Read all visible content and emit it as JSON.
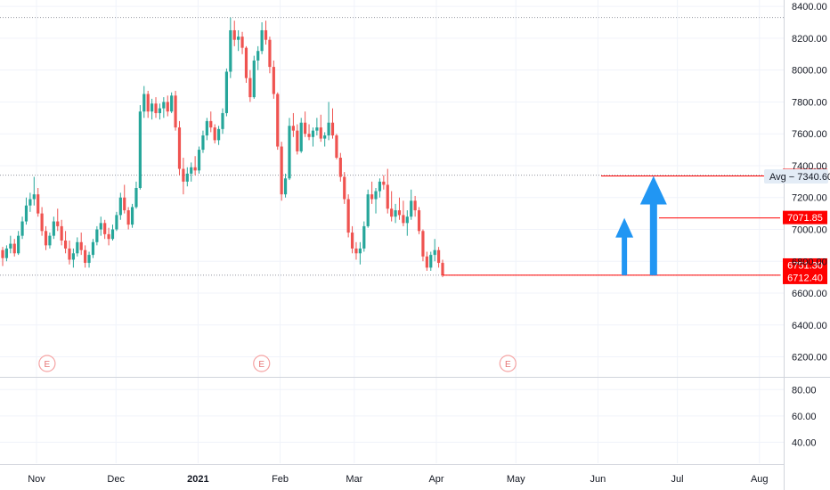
{
  "chart_data": {
    "type": "candlestick",
    "colors": {
      "up": "#26a69a",
      "down": "#ef5350",
      "level": "#ff0000",
      "arrow": "#2196f3",
      "grid": "#f0f3fa"
    },
    "price_axis": {
      "ylim": [
        6080,
        8440
      ],
      "ticks": [
        "8400.00",
        "8200.00",
        "8000.00",
        "7800.00",
        "7600.00",
        "7400.00",
        "7200.00",
        "7000.00",
        "6800.00",
        "6600.00",
        "6400.00",
        "6200.00"
      ]
    },
    "volume_axis": {
      "ylim": [
        24,
        89
      ],
      "ticks": [
        "80.00",
        "60.00",
        "40.00"
      ]
    },
    "months": [
      "Nov",
      "Dec",
      "2021",
      "Feb",
      "Mar",
      "Apr",
      "May",
      "Jun",
      "Jul",
      "Aug"
    ],
    "avg_label": "Avg − 7340.60",
    "avg_value": 7340.6,
    "levels": [
      {
        "value": 7335.45,
        "label": "7335.45"
      },
      {
        "value": 7071.85,
        "label": "7071.85"
      },
      {
        "value": 6751.3,
        "label": "6751.30"
      },
      {
        "value": 6712.4,
        "label": "6712.40"
      }
    ],
    "earnings_marker": "E",
    "earnings_dates": [
      "2020-11-05",
      "2021-01-25",
      "2021-04-28"
    ],
    "period_high": 8330,
    "arrows": [
      {
        "date": "2021-06-11",
        "from": 6712.4,
        "to": 7071.85
      },
      {
        "date": "2021-06-22",
        "from": 6712.4,
        "to": 7335.45
      }
    ],
    "candles": [
      [
        6870,
        6890,
        6770,
        6820
      ],
      [
        6820,
        6900,
        6800,
        6880
      ],
      [
        6880,
        6960,
        6850,
        6910
      ],
      [
        6910,
        6940,
        6830,
        6850
      ],
      [
        6850,
        6990,
        6840,
        6960
      ],
      [
        6960,
        7080,
        6940,
        7050
      ],
      [
        7050,
        7200,
        7030,
        7150
      ],
      [
        7150,
        7230,
        7110,
        7190
      ],
      [
        7190,
        7330,
        7150,
        7220
      ],
      [
        7220,
        7260,
        7080,
        7100
      ],
      [
        7100,
        7140,
        6960,
        6990
      ],
      [
        6990,
        7020,
        6870,
        6900
      ],
      [
        6900,
        6980,
        6880,
        6960
      ],
      [
        6960,
        7080,
        6940,
        7050
      ],
      [
        7050,
        7130,
        6990,
        7020
      ],
      [
        7020,
        7060,
        6900,
        6930
      ],
      [
        6930,
        6990,
        6850,
        6880
      ],
      [
        6880,
        6930,
        6780,
        6810
      ],
      [
        6810,
        6880,
        6760,
        6850
      ],
      [
        6850,
        6950,
        6830,
        6920
      ],
      [
        6920,
        6980,
        6840,
        6870
      ],
      [
        6870,
        6900,
        6760,
        6790
      ],
      [
        6790,
        6860,
        6760,
        6840
      ],
      [
        6840,
        6940,
        6820,
        6920
      ],
      [
        6920,
        7020,
        6900,
        7000
      ],
      [
        7000,
        7080,
        6960,
        7040
      ],
      [
        7040,
        7060,
        6940,
        6970
      ],
      [
        6970,
        7010,
        6900,
        6940
      ],
      [
        6940,
        7030,
        6930,
        7000
      ],
      [
        7000,
        7110,
        6990,
        7090
      ],
      [
        7090,
        7230,
        7060,
        7200
      ],
      [
        7200,
        7280,
        7100,
        7120
      ],
      [
        7120,
        7140,
        7000,
        7030
      ],
      [
        7030,
        7160,
        7010,
        7140
      ],
      [
        7140,
        7300,
        7130,
        7260
      ],
      [
        7260,
        7780,
        7250,
        7740
      ],
      [
        7740,
        7900,
        7700,
        7850
      ],
      [
        7850,
        7870,
        7700,
        7740
      ],
      [
        7740,
        7820,
        7690,
        7790
      ],
      [
        7790,
        7830,
        7700,
        7730
      ],
      [
        7730,
        7790,
        7690,
        7760
      ],
      [
        7760,
        7830,
        7700,
        7800
      ],
      [
        7800,
        7840,
        7710,
        7740
      ],
      [
        7740,
        7860,
        7730,
        7840
      ],
      [
        7840,
        7870,
        7620,
        7640
      ],
      [
        7640,
        7680,
        7340,
        7380
      ],
      [
        7380,
        7450,
        7220,
        7300
      ],
      [
        7300,
        7390,
        7270,
        7350
      ],
      [
        7350,
        7420,
        7300,
        7390
      ],
      [
        7390,
        7460,
        7340,
        7370
      ],
      [
        7370,
        7520,
        7350,
        7500
      ],
      [
        7500,
        7620,
        7480,
        7590
      ],
      [
        7590,
        7700,
        7560,
        7680
      ],
      [
        7680,
        7740,
        7610,
        7640
      ],
      [
        7640,
        7660,
        7540,
        7560
      ],
      [
        7560,
        7650,
        7530,
        7630
      ],
      [
        7630,
        7760,
        7600,
        7730
      ],
      [
        7730,
        8010,
        7710,
        7990
      ],
      [
        7990,
        8330,
        7950,
        8250
      ],
      [
        8250,
        8310,
        8150,
        8190
      ],
      [
        8190,
        8250,
        8120,
        8210
      ],
      [
        8210,
        8240,
        8100,
        8140
      ],
      [
        8140,
        8150,
        7920,
        7950
      ],
      [
        7950,
        8000,
        7800,
        7830
      ],
      [
        7830,
        8090,
        7820,
        8060
      ],
      [
        8060,
        8150,
        8000,
        8120
      ],
      [
        8120,
        8300,
        8100,
        8250
      ],
      [
        8250,
        8310,
        8160,
        8190
      ],
      [
        8190,
        8210,
        7980,
        8020
      ],
      [
        8020,
        8060,
        7820,
        7850
      ],
      [
        7850,
        7860,
        7500,
        7520
      ],
      [
        7520,
        7550,
        7180,
        7220
      ],
      [
        7220,
        7350,
        7200,
        7320
      ],
      [
        7320,
        7700,
        7310,
        7650
      ],
      [
        7650,
        7730,
        7580,
        7620
      ],
      [
        7620,
        7660,
        7470,
        7490
      ],
      [
        7490,
        7700,
        7480,
        7670
      ],
      [
        7670,
        7740,
        7580,
        7600
      ],
      [
        7600,
        7660,
        7560,
        7580
      ],
      [
        7580,
        7640,
        7520,
        7620
      ],
      [
        7620,
        7700,
        7590,
        7640
      ],
      [
        7640,
        7720,
        7550,
        7570
      ],
      [
        7570,
        7610,
        7520,
        7590
      ],
      [
        7590,
        7800,
        7560,
        7670
      ],
      [
        7670,
        7760,
        7570,
        7590
      ],
      [
        7590,
        7600,
        7440,
        7450
      ],
      [
        7450,
        7480,
        7300,
        7330
      ],
      [
        7330,
        7360,
        7160,
        7190
      ],
      [
        7190,
        7220,
        6950,
        6980
      ],
      [
        6980,
        7020,
        6850,
        6880
      ],
      [
        6880,
        6920,
        6810,
        6850
      ],
      [
        6850,
        6920,
        6780,
        6880
      ],
      [
        6880,
        7050,
        6860,
        7020
      ],
      [
        7020,
        7250,
        7010,
        7220
      ],
      [
        7220,
        7300,
        7160,
        7190
      ],
      [
        7190,
        7260,
        7100,
        7240
      ],
      [
        7240,
        7320,
        7200,
        7300
      ],
      [
        7300,
        7340,
        7250,
        7280
      ],
      [
        7280,
        7380,
        7100,
        7130
      ],
      [
        7130,
        7240,
        7050,
        7080
      ],
      [
        7080,
        7160,
        7040,
        7120
      ],
      [
        7120,
        7200,
        7060,
        7090
      ],
      [
        7090,
        7180,
        7020,
        7040
      ],
      [
        7040,
        7120,
        6960,
        7080
      ],
      [
        7080,
        7250,
        7060,
        7180
      ],
      [
        7180,
        7210,
        7080,
        7120
      ],
      [
        7120,
        7140,
        6970,
        6990
      ],
      [
        6990,
        7000,
        6800,
        6830
      ],
      [
        6830,
        6860,
        6740,
        6760
      ],
      [
        6760,
        6860,
        6740,
        6840
      ],
      [
        6840,
        6940,
        6800,
        6870
      ],
      [
        6870,
        6890,
        6760,
        6790
      ],
      [
        6790,
        6810,
        6700,
        6712
      ]
    ]
  }
}
